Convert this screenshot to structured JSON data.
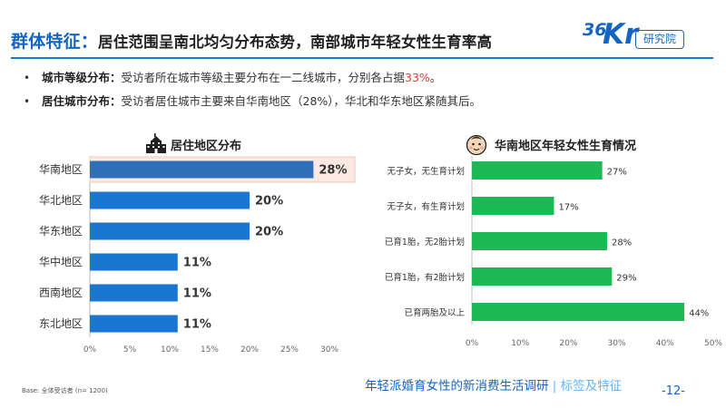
{
  "header": {
    "title_lead": "群体特征：",
    "title_rest": "居住范围呈南北均匀分布态势，南部城市年轻女性生育率高",
    "logo_number": "36",
    "logo_letters": "Kr",
    "logo_text": "研究院"
  },
  "bullets": [
    {
      "label": "城市等级分布：",
      "text": "受访者所在城市等级主要分布在一二线城市，分别各占据",
      "highlight": "33%",
      "suffix": "。"
    },
    {
      "label": "居住城市分布：",
      "text": "受访者居住城市主要来自华南地区（28%），华北和华东地区紧随其后。",
      "highlight": "",
      "suffix": ""
    }
  ],
  "left_chart_title": "居住地区分布",
  "right_chart_title": "华南地区年轻女性生育情况",
  "chart_data": [
    {
      "type": "bar",
      "orientation": "horizontal",
      "title": "居住地区分布",
      "categories": [
        "华南地区",
        "华北地区",
        "华东地区",
        "华中地区",
        "西南地区",
        "东北地区"
      ],
      "values": [
        28,
        20,
        20,
        11,
        11,
        11
      ],
      "value_labels": [
        "28%",
        "20%",
        "20%",
        "11%",
        "11%",
        "11%"
      ],
      "xlim": [
        0,
        30
      ],
      "xticks": [
        "0%",
        "5%",
        "10%",
        "15%",
        "20%",
        "25%",
        "30%"
      ],
      "highlight_category": "华南地区",
      "colors": {
        "bar": "#1976D2",
        "highlight_bar": "#2F6EB8",
        "highlight_bg": "#FBE9E2"
      }
    },
    {
      "type": "bar",
      "orientation": "horizontal",
      "title": "华南地区年轻女性生育情况",
      "categories": [
        "无子女，无生育计划",
        "无子女，有生育计划",
        "已育1胎，无2胎计划",
        "已育1胎，有2胎计划",
        "已育两胎及以上"
      ],
      "values": [
        27,
        17,
        28,
        29,
        44
      ],
      "value_labels": [
        "27%",
        "17%",
        "28%",
        "29%",
        "44%"
      ],
      "xlim": [
        0,
        50
      ],
      "xticks": [
        "0%",
        "10%",
        "20%",
        "30%",
        "40%",
        "50%"
      ],
      "colors": {
        "bar": "#1DB954"
      }
    }
  ],
  "footer": {
    "base_note": "Base: 全体受访者 (n= 1200)",
    "report_title": "年轻派婚育女性的新消费生活调研",
    "section": "| 标签及特征",
    "page": "-12-"
  }
}
